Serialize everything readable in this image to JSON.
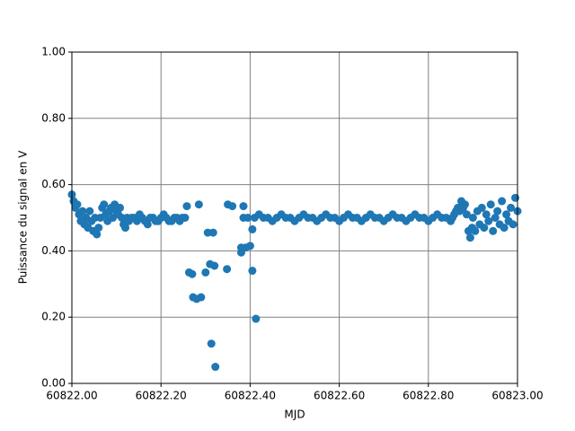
{
  "chart_data": {
    "type": "scatter",
    "xlabel": "MJD",
    "ylabel": "Puissance du signal en V",
    "color": "#1f77b4",
    "grid": true,
    "xlim": [
      60822,
      60823
    ],
    "xticks": [
      {
        "value": 60822,
        "label": "60822.00"
      },
      {
        "value": 60822.2,
        "label": "60822.20"
      },
      {
        "value": 60822.4,
        "label": "60822.40"
      },
      {
        "value": 60822.6,
        "label": "60822.60"
      },
      {
        "value": 60822.8,
        "label": "60822.80"
      },
      {
        "value": 60823,
        "label": "60823.00"
      }
    ],
    "ylim": [
      0,
      1
    ],
    "yticks": [
      {
        "value": 0,
        "label": "0.00"
      },
      {
        "value": 0.2,
        "label": "0.20"
      },
      {
        "value": 0.4,
        "label": "0.40"
      },
      {
        "value": 0.6,
        "label": "0.60"
      },
      {
        "value": 0.8,
        "label": "0.80"
      },
      {
        "value": 1,
        "label": "1.00"
      }
    ],
    "x": [
      60822.0,
      60822.004,
      60822.008,
      60822.012,
      60822.016,
      60822.02,
      60822.024,
      60822.028,
      60822.032,
      60822.036,
      60822.04,
      60822.044,
      60822.048,
      60822.052,
      60822.056,
      60822.06,
      60822.064,
      60822.068,
      60822.072,
      60822.076,
      60822.08,
      60822.084,
      60822.088,
      60822.092,
      60822.096,
      60822.1,
      60822.104,
      60822.108,
      60822.112,
      60822.116,
      60822.12,
      60822.124,
      60822.128,
      60822.134,
      60822.14,
      60822.146,
      60822.152,
      60822.158,
      60822.164,
      60822.17,
      60822.176,
      60822.182,
      60822.188,
      60822.194,
      60822.2,
      60822.206,
      60822.212,
      60822.218,
      60822.224,
      60822.23,
      60822.236,
      60822.242,
      60822.248,
      60822.254,
      60822.258,
      60822.263,
      60822.27,
      60822.272,
      60822.28,
      60822.285,
      60822.29,
      60822.3,
      60822.305,
      60822.31,
      60822.313,
      60822.317,
      60822.32,
      60822.322,
      60822.348,
      60822.35,
      60822.36,
      60822.38,
      60822.38,
      60822.385,
      60822.39,
      60822.4,
      60822.405,
      60822.405,
      60822.413,
      60822.385,
      60822.395,
      60822.41,
      60822.42,
      60822.43,
      60822.44,
      60822.45,
      60822.46,
      60822.47,
      60822.48,
      60822.49,
      60822.5,
      60822.51,
      60822.52,
      60822.53,
      60822.54,
      60822.55,
      60822.56,
      60822.57,
      60822.58,
      60822.59,
      60822.6,
      60822.61,
      60822.62,
      60822.63,
      60822.64,
      60822.65,
      60822.66,
      60822.67,
      60822.68,
      60822.69,
      60822.7,
      60822.71,
      60822.72,
      60822.73,
      60822.74,
      60822.75,
      60822.76,
      60822.77,
      60822.78,
      60822.79,
      60822.8,
      60822.81,
      60822.82,
      60822.83,
      60822.84,
      60822.85,
      60822.854,
      60822.858,
      60822.862,
      60822.866,
      60822.87,
      60822.874,
      60822.878,
      60822.882,
      60822.886,
      60822.89,
      60822.894,
      60822.898,
      60822.9,
      60822.905,
      60822.91,
      60822.915,
      60822.92,
      60822.925,
      60822.93,
      60822.935,
      60822.94,
      60822.945,
      60822.95,
      60822.955,
      60822.96,
      60822.965,
      60822.97,
      60822.975,
      60822.98,
      60822.985,
      60822.99,
      60822.995,
      60823.0
    ],
    "values": [
      0.57,
      0.55,
      0.53,
      0.54,
      0.51,
      0.49,
      0.52,
      0.48,
      0.5,
      0.47,
      0.52,
      0.49,
      0.46,
      0.5,
      0.45,
      0.47,
      0.5,
      0.53,
      0.54,
      0.51,
      0.49,
      0.52,
      0.53,
      0.5,
      0.54,
      0.52,
      0.51,
      0.53,
      0.5,
      0.48,
      0.47,
      0.5,
      0.49,
      0.5,
      0.5,
      0.49,
      0.51,
      0.5,
      0.49,
      0.48,
      0.5,
      0.5,
      0.49,
      0.49,
      0.5,
      0.51,
      0.5,
      0.49,
      0.49,
      0.5,
      0.5,
      0.49,
      0.5,
      0.5,
      0.535,
      0.335,
      0.33,
      0.26,
      0.255,
      0.54,
      0.26,
      0.335,
      0.455,
      0.36,
      0.12,
      0.455,
      0.355,
      0.05,
      0.345,
      0.54,
      0.535,
      0.41,
      0.395,
      0.535,
      0.41,
      0.415,
      0.34,
      0.465,
      0.195,
      0.5,
      0.5,
      0.5,
      0.51,
      0.5,
      0.5,
      0.49,
      0.5,
      0.51,
      0.5,
      0.5,
      0.49,
      0.5,
      0.51,
      0.5,
      0.5,
      0.49,
      0.5,
      0.51,
      0.5,
      0.5,
      0.49,
      0.5,
      0.51,
      0.5,
      0.5,
      0.49,
      0.5,
      0.51,
      0.5,
      0.5,
      0.49,
      0.5,
      0.51,
      0.5,
      0.5,
      0.49,
      0.5,
      0.51,
      0.5,
      0.5,
      0.49,
      0.5,
      0.51,
      0.5,
      0.5,
      0.49,
      0.5,
      0.51,
      0.52,
      0.53,
      0.52,
      0.55,
      0.53,
      0.54,
      0.51,
      0.46,
      0.44,
      0.47,
      0.5,
      0.46,
      0.52,
      0.48,
      0.53,
      0.47,
      0.51,
      0.49,
      0.54,
      0.46,
      0.5,
      0.52,
      0.48,
      0.55,
      0.47,
      0.51,
      0.49,
      0.53,
      0.48,
      0.56,
      0.52
    ]
  }
}
